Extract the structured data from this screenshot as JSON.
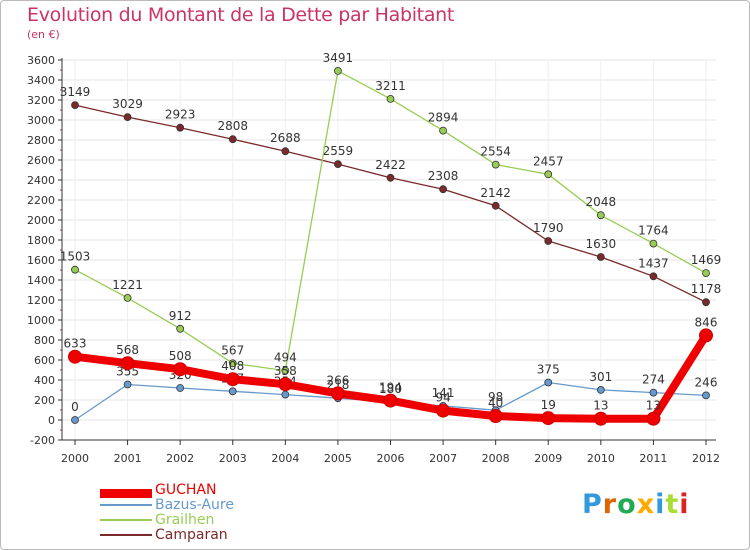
{
  "chart_data": {
    "type": "line",
    "title": "Evolution du Montant de la Dette par Habitant",
    "ylabel": "(en €)",
    "xlabel": "",
    "ylim": [
      -200,
      3600
    ],
    "ytick_step": 200,
    "categories": [
      "2000",
      "2001",
      "2002",
      "2003",
      "2004",
      "2005",
      "2006",
      "2007",
      "2008",
      "2009",
      "2010",
      "2011",
      "2012"
    ],
    "series": [
      {
        "name": "Camparan",
        "color": "#7a2a2a",
        "values": [
          3149,
          3029,
          2923,
          2808,
          2688,
          2559,
          2422,
          2308,
          2142,
          1790,
          1630,
          1437,
          1178
        ],
        "labels": [
          "3149",
          "3029",
          "2923",
          "2808",
          "2688",
          "2559",
          "2422",
          "2308",
          "2142",
          "1790",
          "1630",
          "1437",
          "1178"
        ]
      },
      {
        "name": "Grailhen",
        "color": "#99cc55",
        "values": [
          1503,
          1221,
          912,
          567,
          494,
          3491,
          3211,
          2894,
          2554,
          2457,
          2048,
          1764,
          1469
        ],
        "labels": [
          "1503",
          "1221",
          "912",
          "567",
          "494",
          "3491",
          "3211",
          "2894",
          "2554",
          "2457",
          "2048",
          "1764",
          "1469"
        ]
      },
      {
        "name": "Bazus-Aure",
        "color": "#6699cc",
        "values": [
          0,
          355,
          320,
          287,
          254,
          218,
          180,
          141,
          98,
          375,
          301,
          274,
          246
        ],
        "labels": [
          "0",
          "355",
          "320",
          "287",
          "254",
          "218",
          "180",
          "141",
          "98",
          "375",
          "301",
          "274",
          "246"
        ]
      },
      {
        "name": "GUCHAN",
        "color": "#ee0000",
        "values": [
          633,
          568,
          508,
          408,
          358,
          266,
          194,
          94,
          40,
          19,
          13,
          13,
          846
        ],
        "labels": [
          "633",
          "568",
          "508",
          "408",
          "358",
          "266",
          "194",
          "94",
          "40",
          "19",
          "13",
          "13",
          "846"
        ]
      }
    ],
    "legend_order": [
      "GUCHAN",
      "Bazus-Aure",
      "Grailhen",
      "Camparan"
    ],
    "legend_position": "bottom-left"
  },
  "legend": {
    "items": [
      {
        "label": "GUCHAN",
        "color": "#ee0000"
      },
      {
        "label": "Bazus-Aure",
        "color": "#6699cc"
      },
      {
        "label": "Grailhen",
        "color": "#99cc55"
      },
      {
        "label": "Camparan",
        "color": "#7a2a2a"
      }
    ]
  },
  "brand": {
    "text": "Proxiti",
    "colors": [
      "#3399dd",
      "#dd6600",
      "#22aa55",
      "#ffaa00",
      "#3399dd",
      "#aadd33",
      "#dd2222"
    ]
  }
}
